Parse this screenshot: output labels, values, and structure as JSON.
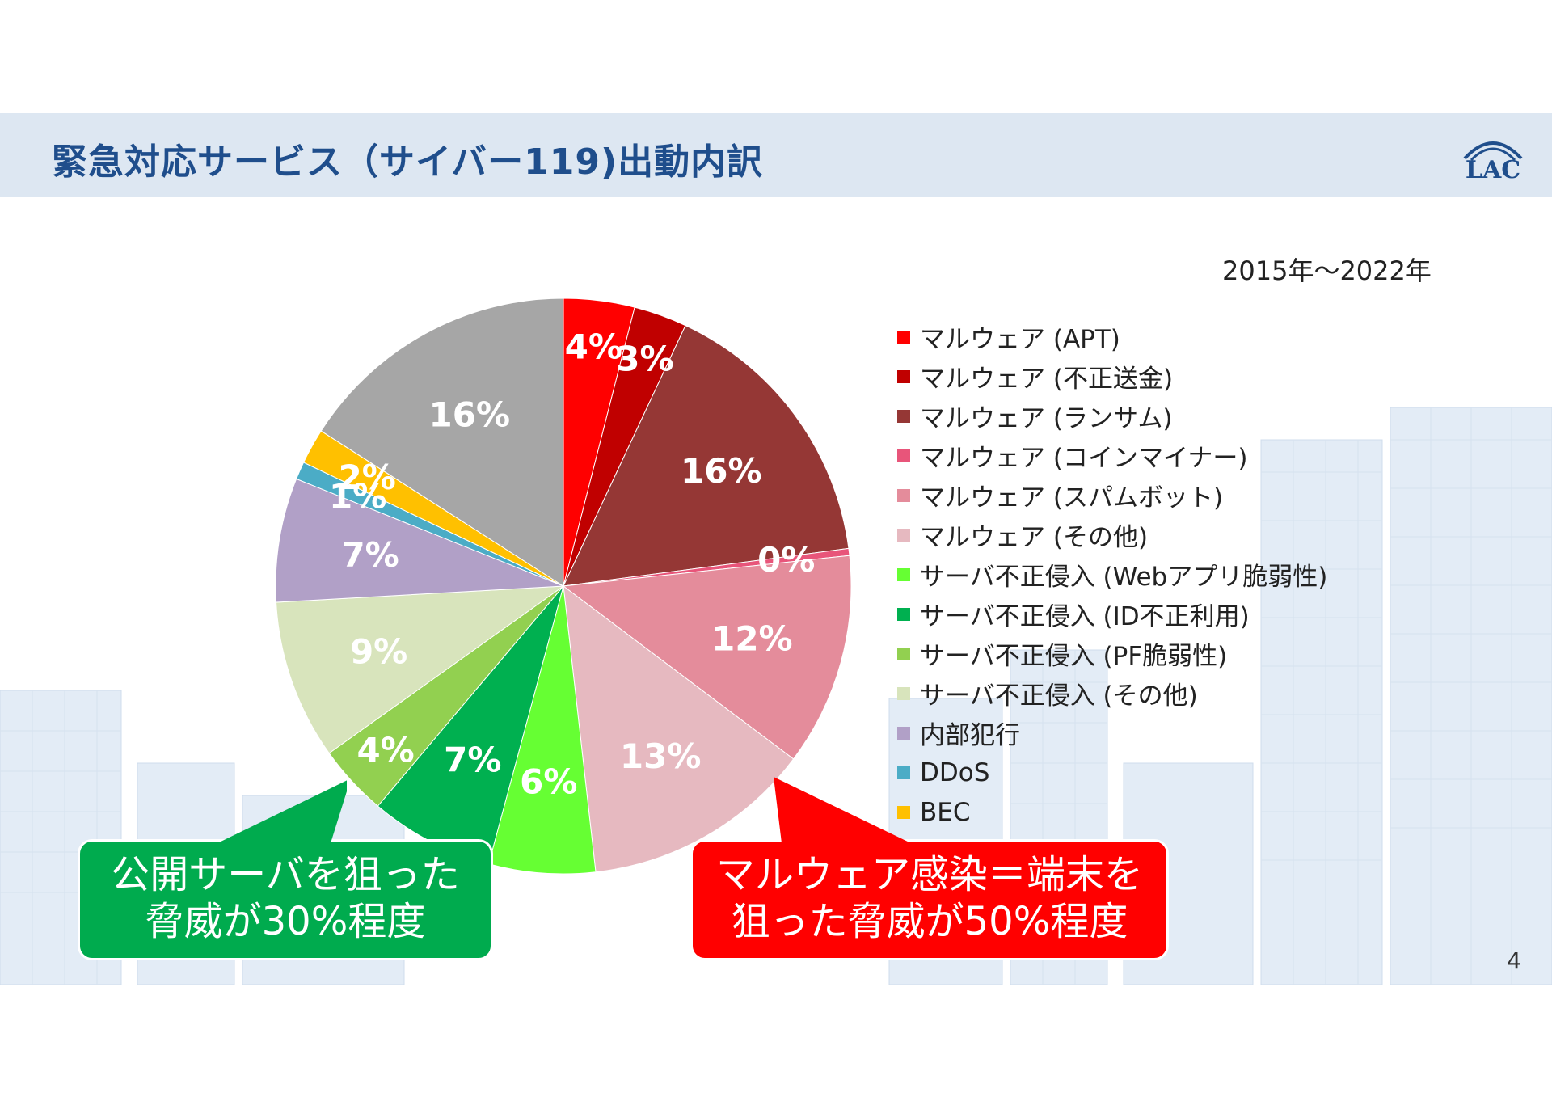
{
  "title": "緊急対応サービス（サイバー119)出動内訳",
  "logo_text": "LAC",
  "period": "2015年～2022年",
  "page_number": "4",
  "callouts": {
    "green": {
      "line1": "公開サーバを狙った",
      "line2": "脅威が30%程度",
      "color": "#00ab4e"
    },
    "red": {
      "line1": "マルウェア感染＝端末を",
      "line2": "狙った脅威が50%程度",
      "color": "#ff0000"
    }
  },
  "chart_data": {
    "type": "pie",
    "title": "",
    "start_angle": "12 o'clock",
    "direction": "clockwise",
    "slices": [
      {
        "label": "マルウェア (APT)",
        "value": 4,
        "display": "4%",
        "color": "#ff0000"
      },
      {
        "label": "マルウェア (不正送金)",
        "value": 3,
        "display": "3%",
        "color": "#c00000"
      },
      {
        "label": "マルウェア (ランサム)",
        "value": 16,
        "display": "16%",
        "color": "#953735"
      },
      {
        "label": "マルウェア (コインマイナー)",
        "value": 0.4,
        "display": "0%",
        "color": "#e8557a"
      },
      {
        "label": "マルウェア (スパムボット)",
        "value": 12,
        "display": "12%",
        "color": "#e48c9b"
      },
      {
        "label": "マルウェア (その他)",
        "value": 13,
        "display": "13%",
        "color": "#e6b9c0"
      },
      {
        "label": "サーバ不正侵入 (Webアプリ脆弱性)",
        "value": 6,
        "display": "6%",
        "color": "#66ff33"
      },
      {
        "label": "サーバ不正侵入 (ID不正利用)",
        "value": 7,
        "display": "7%",
        "color": "#00b050"
      },
      {
        "label": "サーバ不正侵入 (PF脆弱性)",
        "value": 4,
        "display": "4%",
        "color": "#92d050"
      },
      {
        "label": "サーバ不正侵入 (その他)",
        "value": 9,
        "display": "9%",
        "color": "#d8e4bc"
      },
      {
        "label": "内部犯行",
        "value": 7,
        "display": "7%",
        "color": "#b1a0c7"
      },
      {
        "label": "DDoS",
        "value": 1,
        "display": "1%",
        "color": "#4bacc6"
      },
      {
        "label": "BEC",
        "value": 2,
        "display": "2%",
        "color": "#ffc000"
      },
      {
        "label": "",
        "value": 16,
        "display": "16%",
        "color": "#a6a6a6"
      }
    ],
    "legend_placement": "right"
  }
}
